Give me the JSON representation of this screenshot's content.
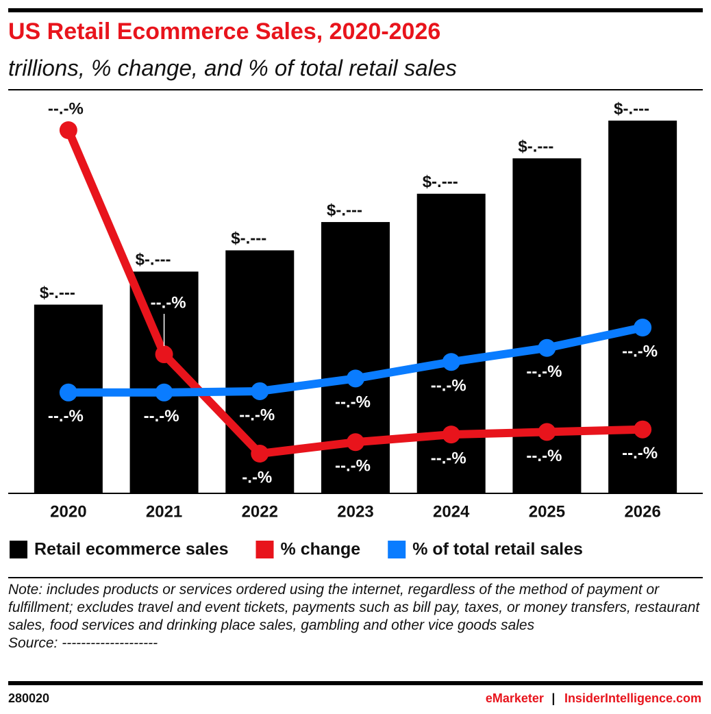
{
  "chart_data": {
    "type": "bar",
    "title": "US Retail Ecommerce Sales, 2020-2026",
    "subtitle": "trillions, % change, and % of total retail sales",
    "categories": [
      "2020",
      "2021",
      "2022",
      "2023",
      "2024",
      "2025",
      "2026"
    ],
    "series": [
      {
        "name": "Retail ecommerce sales",
        "type": "bar",
        "color": "#000000",
        "values": [
          0.8,
          0.94,
          1.03,
          1.15,
          1.27,
          1.42,
          1.58
        ],
        "value_labels": [
          "$-.---",
          "$-.---",
          "$-.---",
          "$-.---",
          "$-.---",
          "$-.---",
          "$-.---"
        ]
      },
      {
        "name": "% change",
        "type": "line",
        "color": "#e8141c",
        "values": [
          32.4,
          14.8,
          7.0,
          7.9,
          8.5,
          8.7,
          8.9
        ],
        "value_labels": [
          "--.-%",
          "--.-%",
          "-.-%",
          "--.-%",
          "--.-%",
          "--.-%",
          "--.-%"
        ]
      },
      {
        "name": "% of total retail sales",
        "type": "line",
        "color": "#0a7cff",
        "values": [
          11.8,
          11.8,
          11.9,
          12.9,
          14.2,
          15.3,
          16.9
        ],
        "value_labels": [
          "--.-%",
          "--.-%",
          "--.-%",
          "--.-%",
          "--.-%",
          "--.-%",
          "--.-%"
        ]
      }
    ],
    "note": "Note: includes products or services ordered using the internet, regardless of the method of payment or fulfillment; excludes travel and event tickets, payments such as bill pay, taxes, or money transfers, restaurant sales, food services and drinking place sales, gambling and other vice goods sales",
    "source": "Source: --------------------",
    "chart_id": "280020",
    "brand": "eMarketer",
    "brand_site": "InsiderIntelligence.com"
  }
}
